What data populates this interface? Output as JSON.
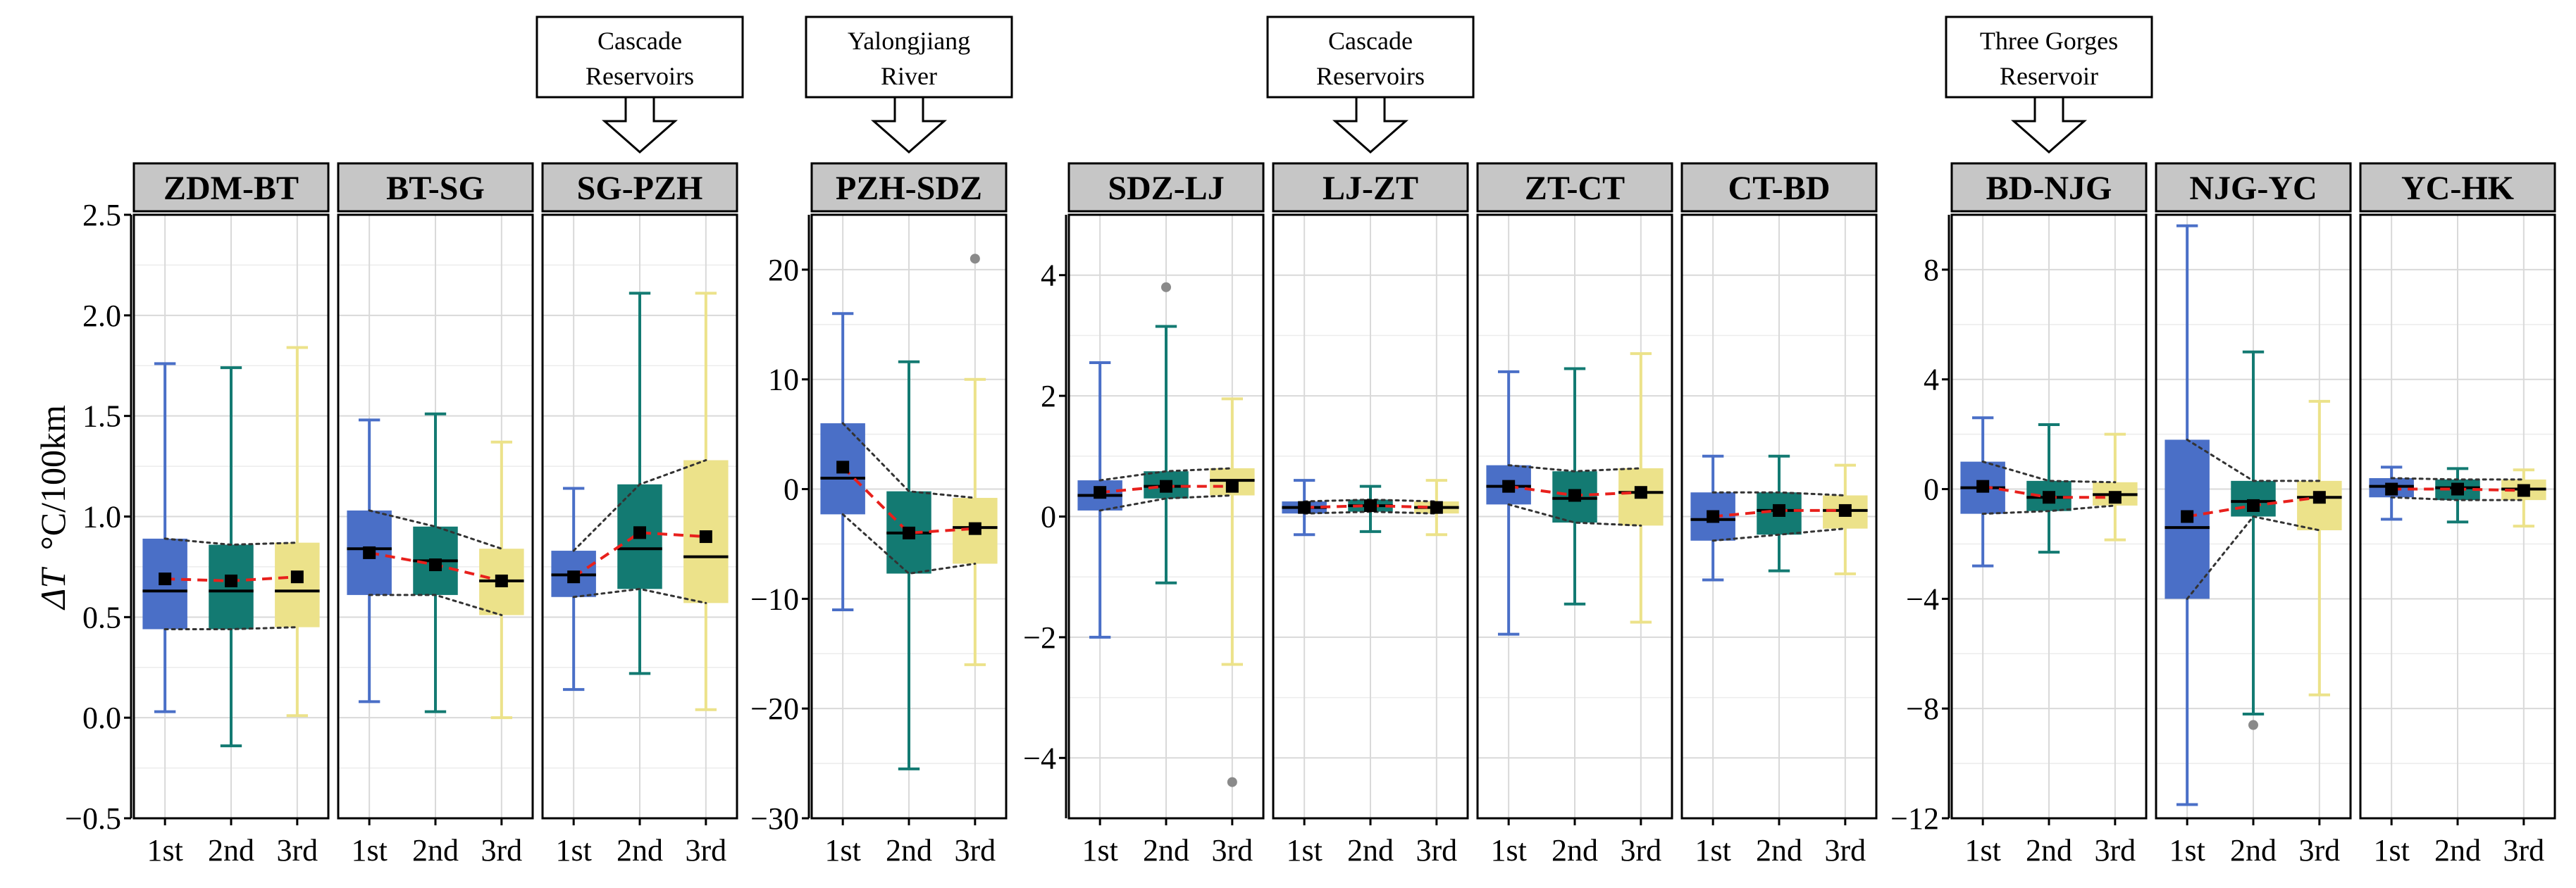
{
  "chart_data": {
    "type": "box",
    "ylabel_symbol": "ΔT",
    "ylabel_unit": "°C/100km",
    "categories": [
      "1st",
      "2nd",
      "3rd"
    ],
    "series_colors": [
      "#4a6fc7",
      "#137a72",
      "#ece28a"
    ],
    "mean_line_color": "#e8201c",
    "envelope_color": "#333333",
    "outlier_color": "#8a8a8a",
    "groups": [
      {
        "axis_ticks": [
          "−0.5",
          "0.0",
          "0.5",
          "1.0",
          "1.5",
          "2.0",
          "2.5"
        ],
        "tick_values": [
          -0.5,
          0.0,
          0.5,
          1.0,
          1.5,
          2.0,
          2.5
        ],
        "ylim": [
          -0.5,
          2.5
        ],
        "facets": [
          {
            "label": "ZDM-BT",
            "boxes": [
              {
                "low": 0.03,
                "q1": 0.44,
                "median": 0.63,
                "q3": 0.89,
                "high": 1.76,
                "mean": 0.69
              },
              {
                "low": -0.14,
                "q1": 0.44,
                "median": 0.63,
                "q3": 0.86,
                "high": 1.74,
                "mean": 0.68
              },
              {
                "low": 0.01,
                "q1": 0.45,
                "median": 0.63,
                "q3": 0.87,
                "high": 1.84,
                "mean": 0.7
              }
            ]
          },
          {
            "label": "BT-SG",
            "boxes": [
              {
                "low": 0.08,
                "q1": 0.61,
                "median": 0.84,
                "q3": 1.03,
                "high": 1.48,
                "mean": 0.82
              },
              {
                "low": 0.03,
                "q1": 0.61,
                "median": 0.78,
                "q3": 0.95,
                "high": 1.51,
                "mean": 0.76
              },
              {
                "low": 0.0,
                "q1": 0.51,
                "median": 0.68,
                "q3": 0.84,
                "high": 1.37,
                "mean": 0.68
              }
            ]
          },
          {
            "label": "SG-PZH",
            "callout": [
              "Cascade",
              "Reservoirs"
            ],
            "boxes": [
              {
                "low": 0.14,
                "q1": 0.6,
                "median": 0.71,
                "q3": 0.83,
                "high": 1.14,
                "mean": 0.7
              },
              {
                "low": 0.22,
                "q1": 0.64,
                "median": 0.84,
                "q3": 1.16,
                "high": 2.11,
                "mean": 0.92
              },
              {
                "low": 0.04,
                "q1": 0.57,
                "median": 0.8,
                "q3": 1.28,
                "high": 2.11,
                "mean": 0.9
              }
            ]
          }
        ]
      },
      {
        "axis_ticks": [
          "−30",
          "−20",
          "−10",
          "0",
          "10",
          "20"
        ],
        "tick_values": [
          -30,
          -20,
          -10,
          0,
          10,
          20
        ],
        "ylim": [
          -30,
          25
        ],
        "facets": [
          {
            "label": "PZH-SDZ",
            "callout": [
              "Yalongjiang",
              "River"
            ],
            "boxes": [
              {
                "low": -11,
                "q1": -2.3,
                "median": 1.0,
                "q3": 6.0,
                "high": 16,
                "mean": 2.0
              },
              {
                "low": -25.5,
                "q1": -7.7,
                "median": -4.0,
                "q3": -0.2,
                "high": 11.6,
                "mean": -4.0
              },
              {
                "low": -16,
                "q1": -6.8,
                "median": -3.5,
                "q3": -0.8,
                "high": 10,
                "mean": -3.6,
                "outliers": [
                  21
                ]
              }
            ]
          }
        ]
      },
      {
        "axis_ticks": [
          "−4",
          "−2",
          "0",
          "2",
          "4"
        ],
        "tick_values": [
          -4,
          -2,
          0,
          2,
          4
        ],
        "ylim": [
          -5,
          5
        ],
        "facets": [
          {
            "label": "SDZ-LJ",
            "boxes": [
              {
                "low": -2.0,
                "q1": 0.1,
                "median": 0.35,
                "q3": 0.6,
                "high": 2.55,
                "mean": 0.4
              },
              {
                "low": -1.1,
                "q1": 0.3,
                "median": 0.5,
                "q3": 0.75,
                "high": 3.15,
                "mean": 0.5,
                "outliers": [
                  3.8
                ]
              },
              {
                "low": -2.45,
                "q1": 0.35,
                "median": 0.6,
                "q3": 0.8,
                "high": 1.95,
                "mean": 0.5,
                "outliers": [
                  -4.4
                ]
              }
            ]
          },
          {
            "label": "LJ-ZT",
            "callout": [
              "Cascade",
              "Reservoirs"
            ],
            "boxes": [
              {
                "low": -0.3,
                "q1": 0.05,
                "median": 0.15,
                "q3": 0.25,
                "high": 0.6,
                "mean": 0.15
              },
              {
                "low": -0.25,
                "q1": 0.08,
                "median": 0.18,
                "q3": 0.28,
                "high": 0.5,
                "mean": 0.18
              },
              {
                "low": -0.3,
                "q1": 0.05,
                "median": 0.15,
                "q3": 0.25,
                "high": 0.6,
                "mean": 0.15
              }
            ]
          },
          {
            "label": "ZT-CT",
            "boxes": [
              {
                "low": -1.95,
                "q1": 0.2,
                "median": 0.5,
                "q3": 0.85,
                "high": 2.4,
                "mean": 0.5
              },
              {
                "low": -1.45,
                "q1": -0.1,
                "median": 0.3,
                "q3": 0.75,
                "high": 2.45,
                "mean": 0.35
              },
              {
                "low": -1.75,
                "q1": -0.15,
                "median": 0.4,
                "q3": 0.8,
                "high": 2.7,
                "mean": 0.4
              }
            ]
          },
          {
            "label": "CT-BD",
            "boxes": [
              {
                "low": -1.05,
                "q1": -0.4,
                "median": -0.05,
                "q3": 0.4,
                "high": 1.0,
                "mean": 0.0
              },
              {
                "low": -0.9,
                "q1": -0.3,
                "median": 0.1,
                "q3": 0.4,
                "high": 1.0,
                "mean": 0.1
              },
              {
                "low": -0.95,
                "q1": -0.2,
                "median": 0.1,
                "q3": 0.35,
                "high": 0.85,
                "mean": 0.1
              }
            ]
          }
        ]
      },
      {
        "axis_ticks": [
          "−12",
          "−8",
          "−4",
          "0",
          "4",
          "8"
        ],
        "tick_values": [
          -12,
          -8,
          -4,
          0,
          4,
          8
        ],
        "ylim": [
          -12,
          10
        ],
        "facets": [
          {
            "label": "BD-NJG",
            "callout": [
              "Three Gorges",
              "Reservoir"
            ],
            "boxes": [
              {
                "low": -2.8,
                "q1": -0.9,
                "median": 0.05,
                "q3": 1.0,
                "high": 2.6,
                "mean": 0.1
              },
              {
                "low": -2.3,
                "q1": -0.8,
                "median": -0.3,
                "q3": 0.3,
                "high": 2.35,
                "mean": -0.3
              },
              {
                "low": -1.85,
                "q1": -0.6,
                "median": -0.2,
                "q3": 0.25,
                "high": 2.0,
                "mean": -0.3
              }
            ]
          },
          {
            "label": "NJG-YC",
            "boxes": [
              {
                "low": -11.5,
                "q1": -4.0,
                "median": -1.4,
                "q3": 1.8,
                "high": 9.6,
                "mean": -1.0
              },
              {
                "low": -8.2,
                "q1": -1.0,
                "median": -0.45,
                "q3": 0.3,
                "high": 5.0,
                "mean": -0.6,
                "outliers": [
                  -8.6
                ]
              },
              {
                "low": -7.5,
                "q1": -1.5,
                "median": -0.3,
                "q3": 0.3,
                "high": 3.2,
                "mean": -0.3
              }
            ]
          },
          {
            "label": "YC-HK",
            "boxes": [
              {
                "low": -1.1,
                "q1": -0.3,
                "median": 0.1,
                "q3": 0.4,
                "high": 0.8,
                "mean": 0.0
              },
              {
                "low": -1.2,
                "q1": -0.4,
                "median": 0.05,
                "q3": 0.35,
                "high": 0.75,
                "mean": 0.0
              },
              {
                "low": -1.35,
                "q1": -0.4,
                "median": 0.0,
                "q3": 0.35,
                "high": 0.7,
                "mean": -0.05
              }
            ]
          }
        ]
      }
    ]
  }
}
